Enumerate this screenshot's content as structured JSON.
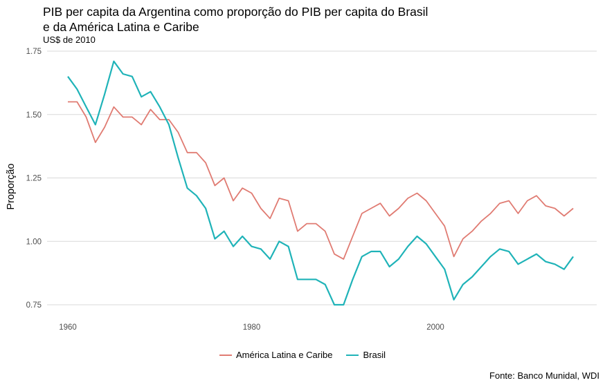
{
  "title_line1": "PIB per capita da Argentina como proporção do PIB per capita do Brasil",
  "title_line2": "e da América Latina e Caribe",
  "subtitle": "US$ de 2010",
  "caption": "Fonte: Banco Munidal, WDI",
  "colors": {
    "america_latina": "#e07b72",
    "brasil": "#1fb3b8",
    "grid": "#d9d9d9"
  },
  "chart_data": {
    "type": "line",
    "title": "PIB per capita da Argentina como proporção do PIB per capita do Brasil e da América Latina e Caribe",
    "subtitle": "US$ de 2010",
    "xlabel": "",
    "ylabel": "Proporção",
    "xlim": [
      1960,
      2015
    ],
    "ylim": [
      0.74,
      1.75
    ],
    "xticks": [
      1960,
      1980,
      2000
    ],
    "yticks": [
      0.75,
      1.0,
      1.25,
      1.5,
      1.75
    ],
    "ytick_labels": [
      "0.75",
      "1.00",
      "1.25",
      "1.50",
      "1.75"
    ],
    "grid": "horizontal",
    "legend_position": "bottom",
    "x": [
      1960,
      1961,
      1962,
      1963,
      1964,
      1965,
      1966,
      1967,
      1968,
      1969,
      1970,
      1971,
      1972,
      1973,
      1974,
      1975,
      1976,
      1977,
      1978,
      1979,
      1980,
      1981,
      1982,
      1983,
      1984,
      1985,
      1986,
      1987,
      1988,
      1989,
      1990,
      1991,
      1992,
      1993,
      1994,
      1995,
      1996,
      1997,
      1998,
      1999,
      2000,
      2001,
      2002,
      2003,
      2004,
      2005,
      2006,
      2007,
      2008,
      2009,
      2010,
      2011,
      2012,
      2013,
      2014,
      2015
    ],
    "series": [
      {
        "name": "América Latina e Caribe",
        "color": "#e07b72",
        "values": [
          1.55,
          1.55,
          1.49,
          1.39,
          1.45,
          1.53,
          1.49,
          1.49,
          1.46,
          1.52,
          1.48,
          1.48,
          1.43,
          1.35,
          1.35,
          1.31,
          1.22,
          1.25,
          1.16,
          1.21,
          1.19,
          1.13,
          1.09,
          1.17,
          1.16,
          1.04,
          1.07,
          1.07,
          1.04,
          0.95,
          0.93,
          1.02,
          1.11,
          1.13,
          1.15,
          1.1,
          1.13,
          1.17,
          1.19,
          1.16,
          1.11,
          1.06,
          0.94,
          1.01,
          1.04,
          1.08,
          1.11,
          1.15,
          1.16,
          1.11,
          1.16,
          1.18,
          1.14,
          1.13,
          1.1,
          1.13
        ]
      },
      {
        "name": "Brasil",
        "color": "#1fb3b8",
        "values": [
          1.65,
          1.6,
          1.53,
          1.46,
          1.58,
          1.71,
          1.66,
          1.65,
          1.57,
          1.59,
          1.53,
          1.46,
          1.33,
          1.21,
          1.18,
          1.13,
          1.01,
          1.04,
          0.98,
          1.02,
          0.98,
          0.97,
          0.93,
          1.0,
          0.98,
          0.85,
          0.85,
          0.85,
          0.83,
          0.75,
          0.75,
          0.85,
          0.94,
          0.96,
          0.96,
          0.9,
          0.93,
          0.98,
          1.02,
          0.99,
          0.94,
          0.89,
          0.77,
          0.83,
          0.86,
          0.9,
          0.94,
          0.97,
          0.96,
          0.91,
          0.93,
          0.95,
          0.92,
          0.91,
          0.89,
          0.94
        ]
      }
    ]
  }
}
